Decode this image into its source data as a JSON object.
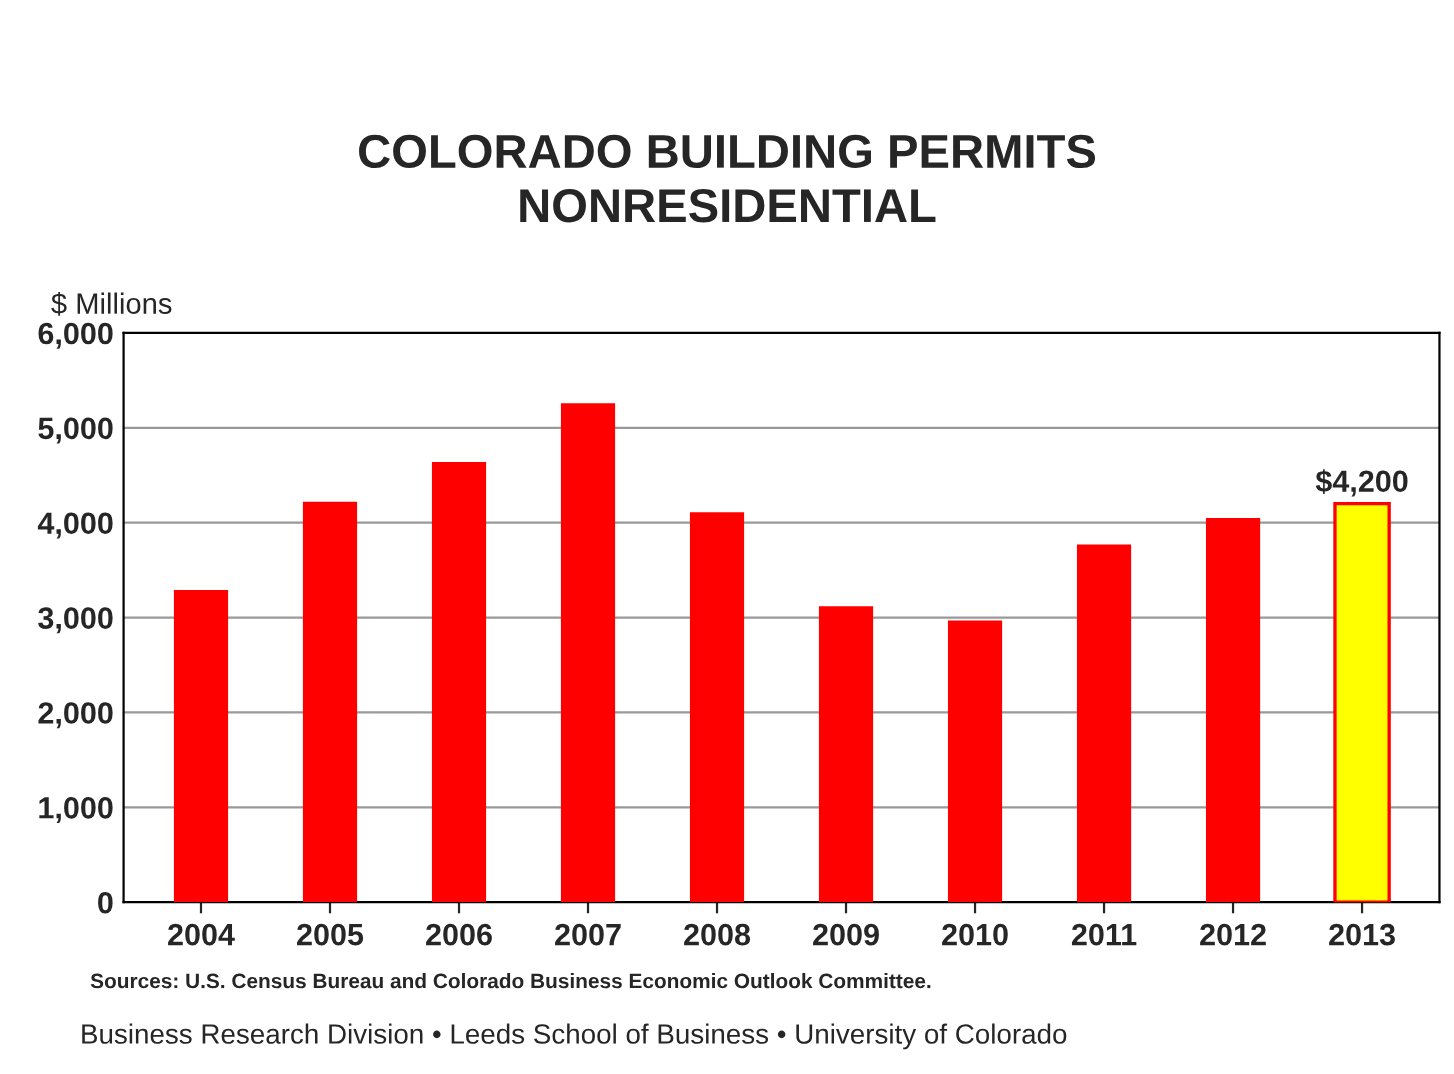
{
  "chart_data": {
    "type": "bar",
    "title": "COLORADO BUILDING PERMITS\nNONRESIDENTIAL",
    "ylabel": "$ Millions",
    "categories": [
      "2004",
      "2005",
      "2006",
      "2007",
      "2008",
      "2009",
      "2010",
      "2011",
      "2012",
      "2013"
    ],
    "values": [
      3290,
      4220,
      4640,
      5260,
      4110,
      3120,
      2970,
      3770,
      4050,
      4200
    ],
    "colors": [
      "#ff0000",
      "#ff0000",
      "#ff0000",
      "#ff0000",
      "#ff0000",
      "#ff0000",
      "#ff0000",
      "#ff0000",
      "#ff0000",
      "#ffff00"
    ],
    "value_labels": [
      null,
      null,
      null,
      null,
      null,
      null,
      null,
      null,
      null,
      "$4,200"
    ],
    "ylim": [
      0,
      6000
    ],
    "yticks": [
      {
        "value": 0,
        "label": "0"
      },
      {
        "value": 1000,
        "label": "1,000"
      },
      {
        "value": 2000,
        "label": "2,000"
      },
      {
        "value": 3000,
        "label": "3,000"
      },
      {
        "value": 4000,
        "label": "4,000"
      },
      {
        "value": 5000,
        "label": "5,000"
      },
      {
        "value": 6000,
        "label": "6,000"
      }
    ],
    "grid": "y",
    "annotations": [
      "Sources: U.S. Census Bureau and Colorado Business Economic Outlook Committee.",
      "Business Research Division • Leeds School of Business • University of Colorado"
    ]
  }
}
